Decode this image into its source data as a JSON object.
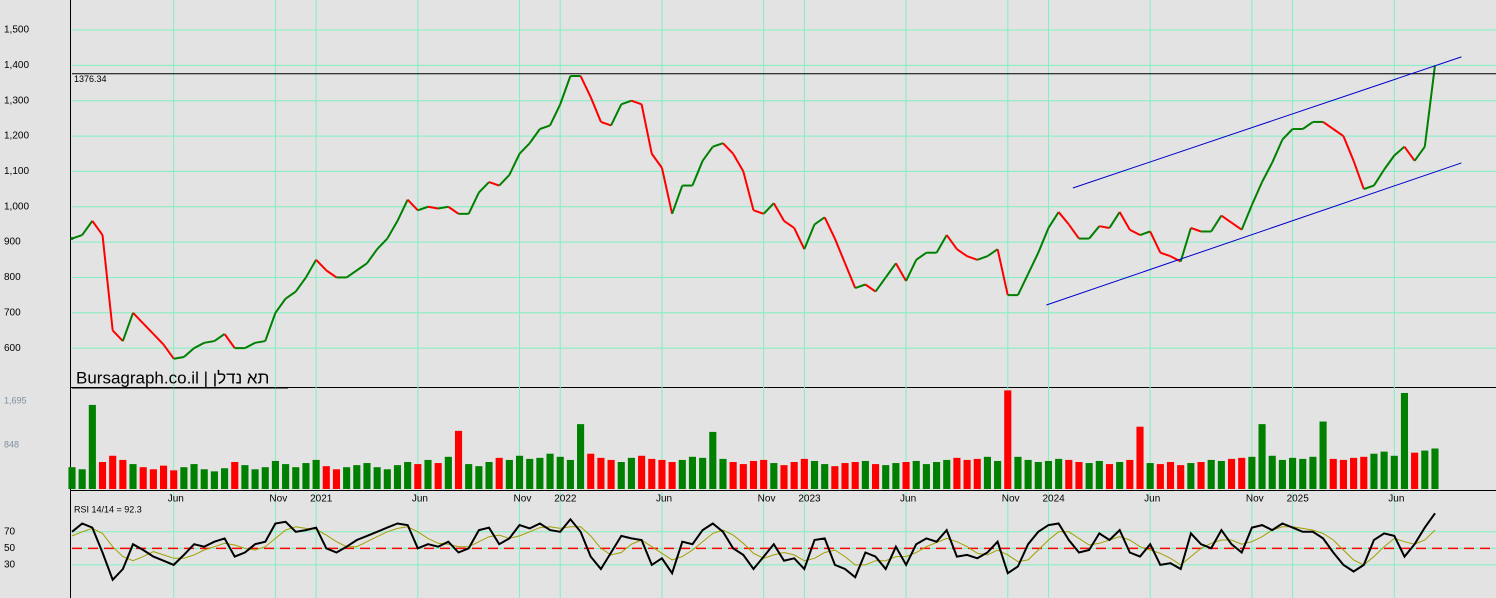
{
  "chart_data": [
    {
      "type": "candle-line",
      "title": "Bursagraph.co.il | תא נדלן",
      "x": [
        0,
        0.5,
        1,
        1.5,
        2,
        2.5,
        3,
        3.5,
        4,
        4.5,
        5,
        5.5,
        6,
        6.5,
        7,
        7.5,
        8,
        8.5,
        9,
        9.5,
        10,
        10.5,
        11,
        11.5,
        12,
        12.5,
        13,
        13.5,
        14,
        14.5,
        15,
        15.5,
        16,
        16.5,
        17,
        17.5,
        18,
        18.5,
        19,
        19.5,
        20,
        20.5,
        21,
        21.5,
        22,
        22.5,
        23,
        23.5,
        24,
        24.5,
        25,
        25.5,
        26,
        26.5,
        27,
        27.5,
        28,
        28.5,
        29,
        29.5,
        30,
        30.5,
        31,
        31.5,
        32,
        32.5,
        33,
        33.5,
        34,
        34.5,
        35,
        35.5,
        36,
        36.5,
        37,
        37.5,
        38,
        38.5,
        39,
        39.5,
        40,
        40.5,
        41,
        41.5,
        42,
        42.5,
        43,
        43.5,
        44,
        44.5,
        45,
        45.5,
        46,
        46.5,
        47,
        47.5,
        48,
        48.5,
        49,
        49.5,
        50,
        50.5,
        51,
        51.5,
        52,
        52.5,
        53,
        53.5,
        54,
        54.5,
        55,
        55.5,
        56,
        56.5,
        57,
        57.5,
        58,
        58.5,
        59,
        59.5,
        60,
        60.5,
        61,
        61.5,
        62,
        62.5,
        63,
        63.5,
        64,
        64.5,
        65,
        65.5,
        66,
        66.5,
        67
      ],
      "series": [
        {
          "values": [
            910,
            920,
            960,
            920,
            650,
            620,
            700,
            670,
            640,
            610,
            570,
            575,
            600,
            615,
            620,
            640,
            600,
            600,
            615,
            620,
            700,
            740,
            760,
            800,
            850,
            820,
            800,
            800,
            820,
            840,
            880,
            910,
            960,
            1020,
            990,
            1000,
            995,
            1000,
            980,
            980,
            1040,
            1070,
            1060,
            1090,
            1150,
            1180,
            1220,
            1230,
            1290,
            1370,
            1370,
            1310,
            1240,
            1230,
            1290,
            1300,
            1290,
            1150,
            1110,
            980,
            1060,
            1060,
            1130,
            1170,
            1180,
            1150,
            1100,
            990,
            980,
            1010,
            960,
            940,
            880,
            950,
            970,
            910,
            840,
            770,
            780,
            760,
            800,
            840,
            790,
            850,
            870,
            870,
            920,
            880,
            860,
            850,
            860,
            880,
            750,
            750,
            810,
            870,
            940,
            985,
            950,
            910,
            910,
            945,
            940,
            985,
            935,
            920,
            930,
            870,
            860,
            845,
            940,
            930,
            930,
            975,
            955,
            935,
            1005,
            1070,
            1125,
            1190,
            1220,
            1220,
            1240,
            1240,
            1220,
            1200,
            1130,
            1050,
            1060,
            1105,
            1145,
            1170,
            1130,
            1170,
            1400
          ]
        }
      ],
      "up_color": "#008000",
      "down_color": "#ff0000",
      "hline": {
        "value": 1376.34,
        "label": "1376.34",
        "color": "#000000"
      },
      "trend_lines": [
        {
          "x": [
            49.2,
            68.3
          ],
          "y": [
            1053,
            1424
          ]
        },
        {
          "x": [
            47.9,
            68.3
          ],
          "y": [
            722,
            1124
          ]
        }
      ],
      "trend_color": "#0000cc",
      "xlim": [
        0,
        70
      ],
      "ylim": [
        490,
        1585
      ],
      "yticks": [
        600,
        700,
        800,
        900,
        {
          "value": 1000,
          "label": "1,000"
        },
        {
          "value": 1100,
          "label": "1,100"
        },
        {
          "value": 1200,
          "label": "1,200"
        },
        {
          "value": 1300,
          "label": "1,300"
        },
        {
          "value": 1400,
          "label": "1,400"
        },
        {
          "value": 1500,
          "label": "1,500"
        }
      ],
      "grid": true
    },
    {
      "type": "bar",
      "x": [
        0,
        0.5,
        1,
        1.5,
        2,
        2.5,
        3,
        3.5,
        4,
        4.5,
        5,
        5.5,
        6,
        6.5,
        7,
        7.5,
        8,
        8.5,
        9,
        9.5,
        10,
        10.5,
        11,
        11.5,
        12,
        12.5,
        13,
        13.5,
        14,
        14.5,
        15,
        15.5,
        16,
        16.5,
        17,
        17.5,
        18,
        18.5,
        19,
        19.5,
        20,
        20.5,
        21,
        21.5,
        22,
        22.5,
        23,
        23.5,
        24,
        24.5,
        25,
        25.5,
        26,
        26.5,
        27,
        27.5,
        28,
        28.5,
        29,
        29.5,
        30,
        30.5,
        31,
        31.5,
        32,
        32.5,
        33,
        33.5,
        34,
        34.5,
        35,
        35.5,
        36,
        36.5,
        37,
        37.5,
        38,
        38.5,
        39,
        39.5,
        40,
        40.5,
        41,
        41.5,
        42,
        42.5,
        43,
        43.5,
        44,
        44.5,
        45,
        45.5,
        46,
        46.5,
        47,
        47.5,
        48,
        48.5,
        49,
        49.5,
        50,
        50.5,
        51,
        51.5,
        52,
        52.5,
        53,
        53.5,
        54,
        54.5,
        55,
        55.5,
        56,
        56.5,
        57,
        57.5,
        58,
        58.5,
        59,
        59.5,
        60,
        60.5,
        61,
        61.5,
        62,
        62.5,
        63,
        63.5,
        64,
        64.5,
        65,
        65.5,
        66,
        66.5,
        67
      ],
      "values": [
        420,
        380,
        1620,
        520,
        640,
        560,
        480,
        420,
        380,
        450,
        360,
        420,
        480,
        380,
        340,
        400,
        520,
        460,
        380,
        420,
        540,
        480,
        420,
        500,
        560,
        440,
        380,
        420,
        460,
        500,
        420,
        380,
        460,
        520,
        480,
        560,
        500,
        620,
        1120,
        480,
        440,
        520,
        600,
        560,
        640,
        580,
        600,
        680,
        620,
        560,
        1250,
        680,
        600,
        560,
        520,
        600,
        640,
        580,
        560,
        520,
        560,
        620,
        600,
        1100,
        580,
        520,
        480,
        540,
        560,
        500,
        460,
        520,
        580,
        540,
        480,
        440,
        500,
        520,
        540,
        480,
        460,
        500,
        520,
        540,
        480,
        520,
        560,
        600,
        560,
        580,
        620,
        540,
        1900,
        620,
        560,
        520,
        540,
        580,
        560,
        520,
        500,
        540,
        480,
        520,
        560,
        1200,
        500,
        480,
        520,
        460,
        500,
        520,
        560,
        540,
        580,
        600,
        620,
        1250,
        640,
        560,
        600,
        580,
        620,
        1300,
        580,
        560,
        600,
        620,
        680,
        720,
        640,
        1850,
        700,
        740,
        780
      ],
      "xlim": [
        0,
        70
      ],
      "ylim": [
        0,
        1965
      ],
      "yticks": [
        848,
        {
          "value": 1695,
          "label": "1,695"
        }
      ],
      "xticks": [
        {
          "value": 5,
          "label": "Jun"
        },
        {
          "value": 10,
          "label": "Nov"
        },
        {
          "value": 12,
          "label": "2021"
        },
        {
          "value": 17,
          "label": "Jun"
        },
        {
          "value": 22,
          "label": "Nov"
        },
        {
          "value": 24,
          "label": "2022"
        },
        {
          "value": 29,
          "label": "Jun"
        },
        {
          "value": 34,
          "label": "Nov"
        },
        {
          "value": 36,
          "label": "2023"
        },
        {
          "value": 41,
          "label": "Jun"
        },
        {
          "value": 46,
          "label": "Nov"
        },
        {
          "value": 48,
          "label": "2024"
        },
        {
          "value": 53,
          "label": "Jun"
        },
        {
          "value": 58,
          "label": "Nov"
        },
        {
          "value": 60,
          "label": "2025"
        },
        {
          "value": 65,
          "label": "Jun"
        }
      ]
    },
    {
      "type": "line",
      "title": "RSI 14/14 = 92.3",
      "x": [
        0,
        0.5,
        1,
        1.5,
        2,
        2.5,
        3,
        3.5,
        4,
        4.5,
        5,
        5.5,
        6,
        6.5,
        7,
        7.5,
        8,
        8.5,
        9,
        9.5,
        10,
        10.5,
        11,
        11.5,
        12,
        12.5,
        13,
        13.5,
        14,
        14.5,
        15,
        15.5,
        16,
        16.5,
        17,
        17.5,
        18,
        18.5,
        19,
        19.5,
        20,
        20.5,
        21,
        21.5,
        22,
        22.5,
        23,
        23.5,
        24,
        24.5,
        25,
        25.5,
        26,
        26.5,
        27,
        27.5,
        28,
        28.5,
        29,
        29.5,
        30,
        30.5,
        31,
        31.5,
        32,
        32.5,
        33,
        33.5,
        34,
        34.5,
        35,
        35.5,
        36,
        36.5,
        37,
        37.5,
        38,
        38.5,
        39,
        39.5,
        40,
        40.5,
        41,
        41.5,
        42,
        42.5,
        43,
        43.5,
        44,
        44.5,
        45,
        45.5,
        46,
        46.5,
        47,
        47.5,
        48,
        48.5,
        49,
        49.5,
        50,
        50.5,
        51,
        51.5,
        52,
        52.5,
        53,
        53.5,
        54,
        54.5,
        55,
        55.5,
        56,
        56.5,
        57,
        57.5,
        58,
        58.5,
        59,
        59.5,
        60,
        60.5,
        61,
        61.5,
        62,
        62.5,
        63,
        63.5,
        64,
        64.5,
        65,
        65.5,
        66,
        66.5,
        67
      ],
      "series": [
        {
          "color": "#a0a000",
          "values": [
            65,
            70,
            74,
            68,
            52,
            40,
            35,
            40,
            46,
            42,
            38,
            38,
            42,
            48,
            52,
            56,
            54,
            50,
            48,
            52,
            62,
            72,
            76,
            74,
            73,
            66,
            58,
            52,
            52,
            58,
            64,
            70,
            74,
            76,
            70,
            62,
            56,
            55,
            52,
            52,
            58,
            64,
            66,
            62,
            65,
            70,
            75,
            76,
            74,
            76,
            76,
            65,
            50,
            42,
            45,
            55,
            60,
            52,
            44,
            36,
            40,
            48,
            58,
            68,
            72,
            66,
            56,
            44,
            38,
            42,
            45,
            42,
            35,
            38,
            45,
            48,
            40,
            30,
            30,
            35,
            35,
            40,
            40,
            45,
            52,
            57,
            62,
            58,
            52,
            44,
            42,
            48,
            42,
            34,
            36,
            48,
            60,
            70,
            70,
            62,
            54,
            56,
            60,
            64,
            60,
            52,
            48,
            44,
            38,
            30,
            40,
            50,
            56,
            60,
            60,
            55,
            58,
            64,
            72,
            76,
            76,
            74,
            72,
            68,
            60,
            48,
            36,
            30,
            40,
            52,
            62,
            58,
            55,
            60,
            72
          ]
        },
        {
          "color": "#000000",
          "values": [
            70,
            80,
            75,
            45,
            12,
            25,
            55,
            48,
            40,
            35,
            30,
            42,
            55,
            52,
            58,
            62,
            40,
            45,
            55,
            58,
            80,
            82,
            70,
            72,
            75,
            50,
            45,
            52,
            60,
            65,
            70,
            75,
            80,
            78,
            50,
            55,
            52,
            58,
            45,
            50,
            72,
            75,
            55,
            62,
            78,
            74,
            80,
            72,
            70,
            85,
            70,
            40,
            25,
            45,
            65,
            62,
            60,
            30,
            38,
            20,
            58,
            55,
            72,
            80,
            70,
            50,
            42,
            25,
            40,
            55,
            35,
            38,
            25,
            60,
            62,
            30,
            25,
            15,
            45,
            40,
            25,
            52,
            30,
            55,
            62,
            58,
            72,
            40,
            42,
            38,
            45,
            58,
            20,
            28,
            55,
            70,
            78,
            80,
            60,
            45,
            48,
            68,
            60,
            72,
            45,
            40,
            55,
            30,
            32,
            25,
            68,
            55,
            50,
            72,
            55,
            45,
            75,
            78,
            72,
            80,
            75,
            70,
            70,
            62,
            45,
            30,
            22,
            30,
            60,
            68,
            65,
            40,
            55,
            75,
            92.3
          ]
        }
      ],
      "ref_line": {
        "value": 50,
        "color": "#ff0000"
      },
      "xlim": [
        0,
        70
      ],
      "ylim": [
        -10,
        118
      ],
      "yticks": [
        30,
        50,
        70
      ]
    }
  ]
}
